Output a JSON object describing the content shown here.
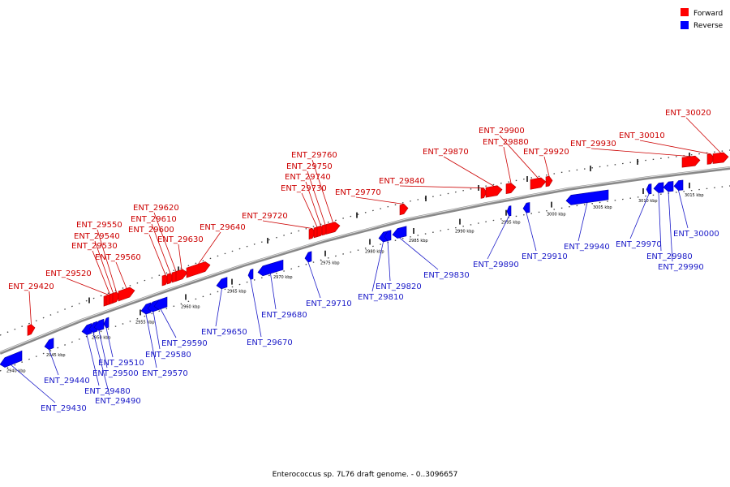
{
  "caption": "Enterococcus sp. 7L76 draft genome. - 0..3096657",
  "legend": [
    {
      "label": "Forward",
      "color": "#ff0000"
    },
    {
      "label": "Reverse",
      "color": "#0000ff"
    }
  ],
  "colors": {
    "forward": "#ff0000",
    "reverse": "#0000ff",
    "forward_text": "#cc0000",
    "reverse_text": "#1a1ac8",
    "backbone": "#888888"
  },
  "axis": {
    "unit": "kbp",
    "ticks": [
      "2940 kbp",
      "2945 kbp",
      "2950 kbp",
      "2955 kbp",
      "2960 kbp",
      "2965 kbp",
      "2970 kbp",
      "2975 kbp",
      "2980 kbp",
      "2985 kbp",
      "2990 kbp",
      "2995 kbp",
      "3000 kbp",
      "3005 kbp",
      "3010 kbp",
      "3015 kbp"
    ]
  },
  "genes_forward": [
    "ENT_29420",
    "ENT_29520",
    "ENT_29530",
    "ENT_29540",
    "ENT_29550",
    "ENT_29560",
    "ENT_29600",
    "ENT_29610",
    "ENT_29620",
    "ENT_29630",
    "ENT_29640",
    "ENT_29720",
    "ENT_29730",
    "ENT_29740",
    "ENT_29750",
    "ENT_29760",
    "ENT_29770",
    "ENT_29840",
    "ENT_29870",
    "ENT_29880",
    "ENT_29900",
    "ENT_29920",
    "ENT_29930",
    "ENT_30010",
    "ENT_30020"
  ],
  "genes_reverse": [
    "ENT_29430",
    "ENT_29440",
    "ENT_29480",
    "ENT_29490",
    "ENT_29500",
    "ENT_29510",
    "ENT_29570",
    "ENT_29580",
    "ENT_29590",
    "ENT_29650",
    "ENT_29670",
    "ENT_29680",
    "ENT_29710",
    "ENT_29810",
    "ENT_29820",
    "ENT_29830",
    "ENT_29890",
    "ENT_29910",
    "ENT_29940",
    "ENT_29970",
    "ENT_29980",
    "ENT_29990",
    "ENT_30000"
  ]
}
